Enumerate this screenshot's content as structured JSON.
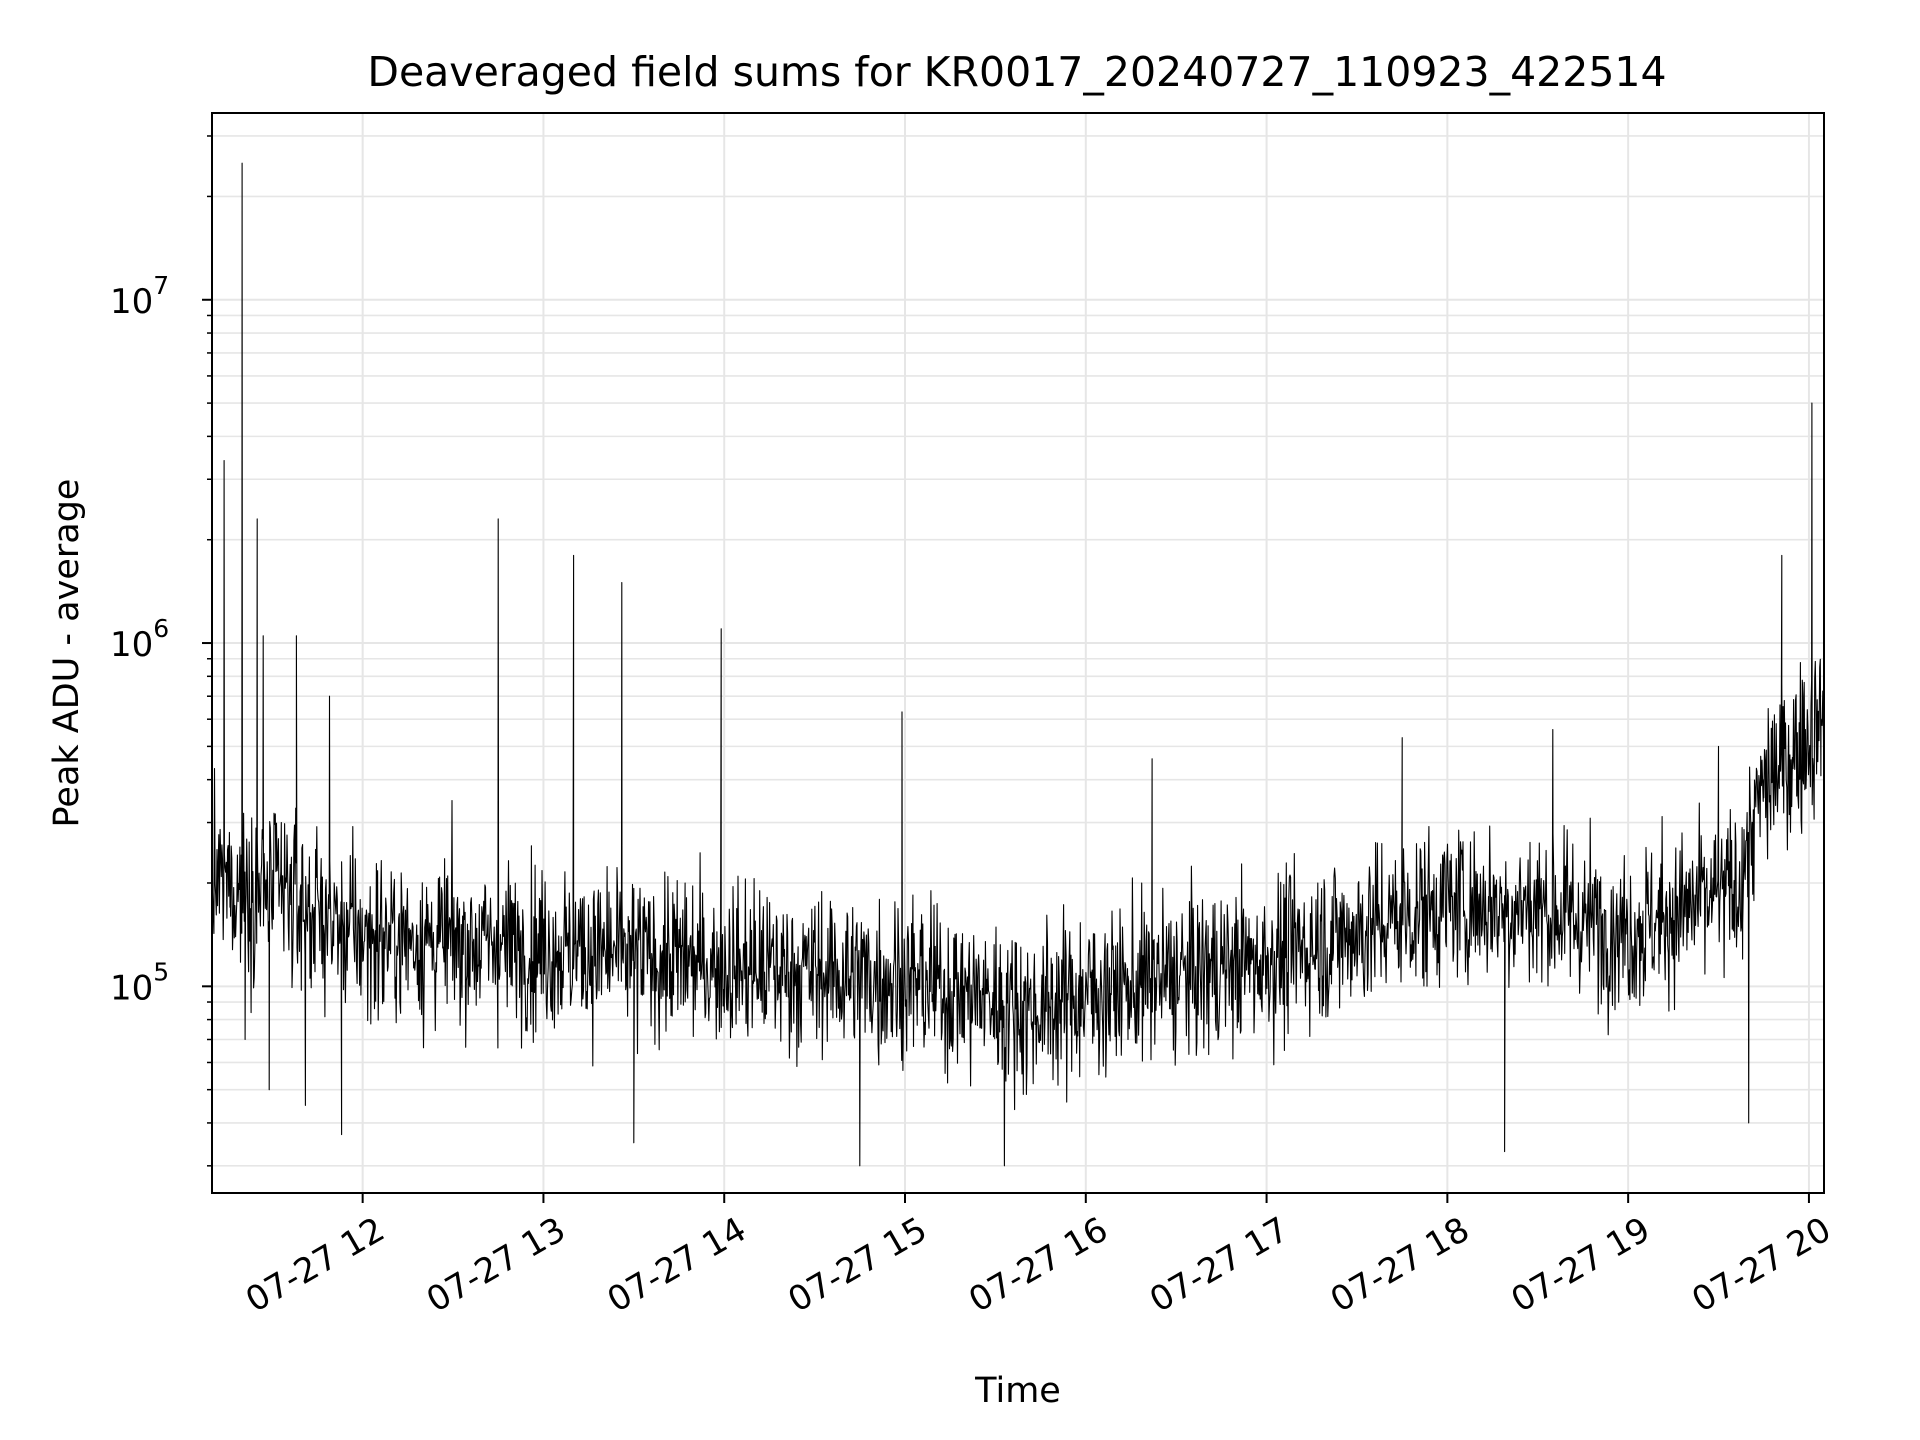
{
  "chart_data": {
    "type": "line",
    "title": "Deaveraged field sums for KR0017_20240727_110923_422514",
    "xlabel": "Time",
    "ylabel": "Peak ADU - average",
    "yscale": "log",
    "ylim": [
      25000,
      35000000
    ],
    "xlim": [
      "2024-07-27T11:10:00",
      "2024-07-27T20:05:00"
    ],
    "grid": true,
    "x_tick_labels": [
      "07-27 12",
      "07-27 13",
      "07-27 14",
      "07-27 15",
      "07-27 16",
      "07-27 17",
      "07-27 18",
      "07-27 19",
      "07-27 20"
    ],
    "x_ticks": [
      "2024-07-27T12:00:00",
      "2024-07-27T13:00:00",
      "2024-07-27T14:00:00",
      "2024-07-27T15:00:00",
      "2024-07-27T16:00:00",
      "2024-07-27T17:00:00",
      "2024-07-27T18:00:00",
      "2024-07-27T19:00:00",
      "2024-07-27T20:00:00"
    ],
    "y_tick_labels": [
      {
        "base": "10",
        "exp": "5"
      },
      {
        "base": "10",
        "exp": "6"
      },
      {
        "base": "10",
        "exp": "7"
      }
    ],
    "y_ticks": [
      100000,
      1000000,
      10000000
    ],
    "colors": {
      "line": "#000000",
      "grid": "#e6e6e6"
    },
    "series": [
      {
        "x": [
          "2024-07-27T11:10:00",
          "2024-07-27T11:14:00",
          "2024-07-27T11:16:00",
          "2024-07-27T11:20:00",
          "2024-07-27T11:21:00",
          "2024-07-27T11:25:00",
          "2024-07-27T11:27:00",
          "2024-07-27T11:29:00",
          "2024-07-27T11:33:00",
          "2024-07-27T11:38:00",
          "2024-07-27T11:41:00",
          "2024-07-27T11:44:00",
          "2024-07-27T11:49:00",
          "2024-07-27T11:53:00",
          "2024-07-27T12:15:00",
          "2024-07-27T12:45:00",
          "2024-07-27T12:52:00",
          "2024-07-27T13:10:00",
          "2024-07-27T13:13:00",
          "2024-07-27T13:26:00",
          "2024-07-27T13:30:00",
          "2024-07-27T13:47:00",
          "2024-07-27T13:59:00",
          "2024-07-27T14:04:00",
          "2024-07-27T14:45:00",
          "2024-07-27T14:59:00",
          "2024-07-27T15:33:00",
          "2024-07-27T16:14:00",
          "2024-07-27T16:22:00",
          "2024-07-27T17:17:00",
          "2024-07-27T17:45:00",
          "2024-07-27T18:19:00",
          "2024-07-27T18:35:00",
          "2024-07-27T19:13:00",
          "2024-07-27T19:30:00",
          "2024-07-27T19:38:00",
          "2024-07-27T19:40:00",
          "2024-07-27T19:45:00",
          "2024-07-27T19:51:00",
          "2024-07-27T19:58:00",
          "2024-07-27T20:01:00",
          "2024-07-27T20:04:00"
        ],
        "y": [
          230000,
          3400000,
          200000,
          25000000,
          70000,
          2300000,
          1050000,
          50000,
          300000,
          1050000,
          45000,
          150000,
          700000,
          37000,
          150000,
          2300000,
          140000,
          1800000,
          180000,
          1500000,
          35000,
          200000,
          1100000,
          100000,
          30000,
          630000,
          30000,
          70000,
          460000,
          200000,
          530000,
          33000,
          560000,
          170000,
          500000,
          120000,
          40000,
          400000,
          1800000,
          700000,
          5000000,
          600000
        ]
      }
    ]
  }
}
